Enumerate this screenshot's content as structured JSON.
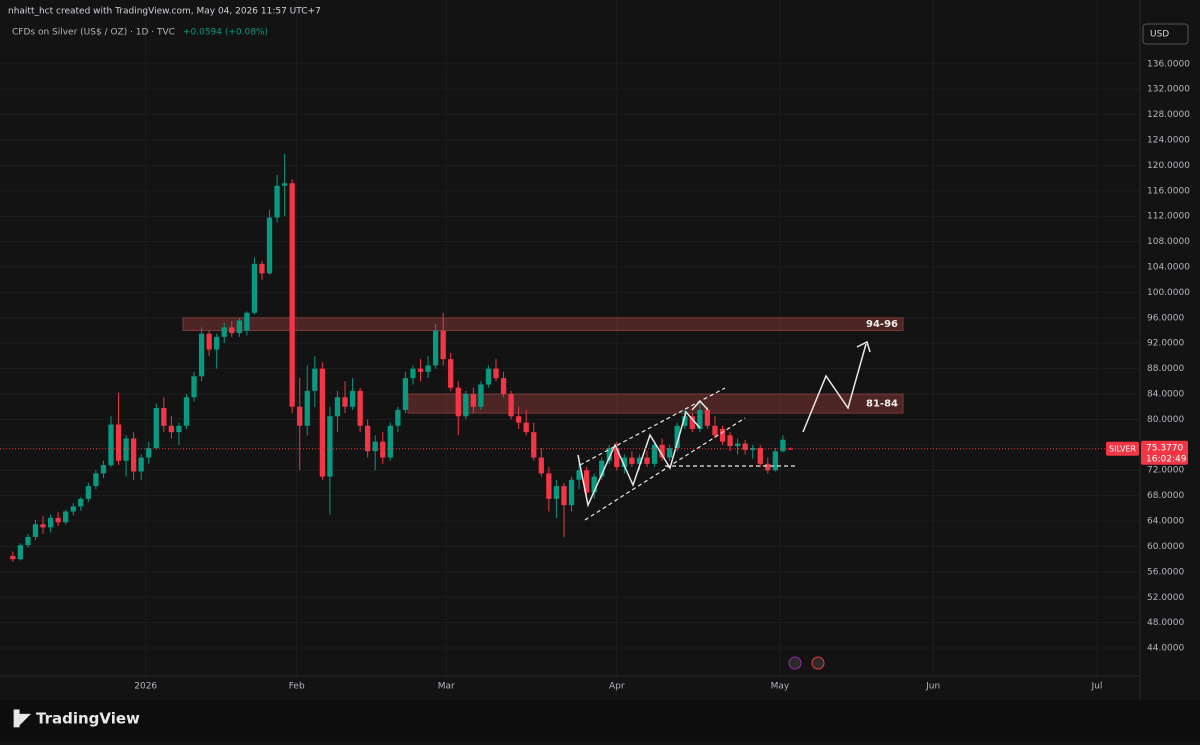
{
  "chart_data": {
    "type": "candlestick",
    "author_line": "nhaitt_hct created with TradingView.com, May 04, 2026 11:57 UTC+7",
    "title": "CFDs on Silver (US$ / OZ) · 1D · TVC",
    "change": "+0.0594 (+0.08%)",
    "currency": "USD",
    "symbol": "SILVER",
    "last_price": {
      "value": 75.377,
      "label": "75.3770"
    },
    "countdown": "16:02:49",
    "brand": "TradingView",
    "up_color": "#089981",
    "down_color": "#f23645",
    "grid": true,
    "xlim": [
      -1.7,
      149.3
    ],
    "xticks": [
      {
        "value": 17.6,
        "label": "2026"
      },
      {
        "value": 37.6,
        "label": "Feb"
      },
      {
        "value": 57.4,
        "label": "Mar"
      },
      {
        "value": 80,
        "label": "Apr"
      },
      {
        "value": 101.6,
        "label": "May"
      },
      {
        "value": 121.9,
        "label": "Jun"
      },
      {
        "value": 143.6,
        "label": "Jul"
      }
    ],
    "ylim": [
      39.6,
      142.9
    ],
    "yticks": [
      {
        "value": 44,
        "label": "44.0000"
      },
      {
        "value": 48,
        "label": "48.0000"
      },
      {
        "value": 52,
        "label": "52.0000"
      },
      {
        "value": 56,
        "label": "56.0000"
      },
      {
        "value": 60,
        "label": "60.0000"
      },
      {
        "value": 64,
        "label": "64.0000"
      },
      {
        "value": 68,
        "label": "68.0000"
      },
      {
        "value": 72,
        "label": "72.0000"
      },
      {
        "value": 76,
        "label": "76.0000"
      },
      {
        "value": 80,
        "label": "80.0000"
      },
      {
        "value": 84,
        "label": "84.0000"
      },
      {
        "value": 88,
        "label": "88.0000"
      },
      {
        "value": 92,
        "label": "92.0000"
      },
      {
        "value": 96,
        "label": "96.0000"
      },
      {
        "value": 100,
        "label": "100.0000"
      },
      {
        "value": 104,
        "label": "104.0000"
      },
      {
        "value": 108,
        "label": "108.0000"
      },
      {
        "value": 112,
        "label": "112.0000"
      },
      {
        "value": 116,
        "label": "116.0000"
      },
      {
        "value": 120,
        "label": "120.0000"
      },
      {
        "value": 124,
        "label": "124.0000"
      },
      {
        "value": 128,
        "label": "128.0000"
      },
      {
        "value": 132,
        "label": "132.0000"
      },
      {
        "value": 136,
        "label": "136.0000"
      }
    ],
    "zones": [
      {
        "label": "94-96",
        "low": 94,
        "high": 96
      },
      {
        "label": "81-84",
        "low": 81,
        "high": 84
      }
    ],
    "ohlc": [
      [
        58.5,
        59.2,
        57.6,
        58.0
      ],
      [
        58.0,
        60.5,
        57.8,
        60.2
      ],
      [
        60.2,
        62.0,
        59.8,
        61.5
      ],
      [
        61.5,
        64.2,
        61.0,
        63.5
      ],
      [
        63.5,
        64.8,
        62.0,
        63.0
      ],
      [
        63.0,
        65.0,
        62.2,
        64.5
      ],
      [
        64.5,
        65.4,
        63.2,
        63.8
      ],
      [
        63.8,
        65.8,
        63.5,
        65.5
      ],
      [
        65.5,
        66.8,
        64.9,
        66.3
      ],
      [
        66.3,
        67.8,
        65.6,
        67.5
      ],
      [
        67.5,
        70.0,
        67.0,
        69.5
      ],
      [
        69.5,
        72.0,
        69.0,
        71.5
      ],
      [
        71.5,
        73.5,
        70.8,
        72.8
      ],
      [
        72.8,
        80.5,
        72.5,
        79.2
      ],
      [
        79.2,
        84.2,
        72.8,
        73.5
      ],
      [
        73.5,
        77.5,
        71.0,
        77.0
      ],
      [
        77.0,
        78.0,
        70.5,
        71.8
      ],
      [
        71.8,
        74.5,
        70.5,
        74.0
      ],
      [
        74.0,
        76.5,
        73.0,
        75.5
      ],
      [
        75.5,
        82.5,
        75.2,
        81.8
      ],
      [
        81.8,
        83.5,
        78.0,
        79.0
      ],
      [
        79.0,
        80.5,
        77.0,
        78.0
      ],
      [
        78.0,
        79.5,
        76.0,
        79.0
      ],
      [
        79.0,
        84.0,
        78.5,
        83.5
      ],
      [
        83.5,
        87.5,
        82.8,
        86.8
      ],
      [
        86.8,
        94.5,
        86.0,
        93.5
      ],
      [
        93.5,
        94.0,
        90.0,
        91.0
      ],
      [
        91.0,
        93.5,
        88.0,
        93.0
      ],
      [
        93.0,
        95.2,
        92.0,
        94.5
      ],
      [
        94.5,
        95.5,
        93.0,
        93.6
      ],
      [
        93.6,
        96.0,
        93.0,
        95.6
      ],
      [
        94.0,
        97.0,
        93.2,
        96.8
      ],
      [
        96.8,
        105.5,
        96.5,
        104.5
      ],
      [
        104.5,
        105.0,
        102.0,
        103.0
      ],
      [
        103.0,
        113.0,
        102.8,
        111.8
      ],
      [
        111.8,
        118.5,
        111.0,
        116.8
      ],
      [
        116.8,
        121.8,
        112.0,
        117.2
      ],
      [
        117.2,
        117.8,
        81.0,
        82.0
      ],
      [
        82.0,
        86.5,
        72.0,
        79.0
      ],
      [
        79.0,
        88.5,
        77.5,
        84.5
      ],
      [
        84.5,
        90.0,
        82.0,
        88.0
      ],
      [
        88.0,
        89.0,
        70.5,
        71.0
      ],
      [
        71.0,
        82.0,
        65.0,
        80.5
      ],
      [
        80.5,
        84.5,
        78.0,
        83.5
      ],
      [
        83.5,
        86.0,
        81.0,
        82.0
      ],
      [
        82.0,
        86.5,
        81.5,
        84.5
      ],
      [
        84.5,
        85.0,
        78.0,
        79.0
      ],
      [
        79.0,
        80.0,
        74.0,
        75.0
      ],
      [
        75.0,
        77.5,
        72.0,
        76.5
      ],
      [
        76.5,
        78.0,
        73.0,
        74.0
      ],
      [
        74.0,
        79.5,
        73.5,
        79.0
      ],
      [
        79.0,
        82.0,
        78.0,
        81.5
      ],
      [
        81.5,
        87.5,
        81.0,
        86.5
      ],
      [
        86.5,
        88.5,
        85.5,
        88.0
      ],
      [
        88.0,
        89.5,
        86.0,
        87.5
      ],
      [
        87.5,
        90.0,
        86.5,
        88.5
      ],
      [
        88.5,
        95.0,
        88.0,
        94.0
      ],
      [
        94.0,
        96.8,
        88.5,
        89.5
      ],
      [
        89.5,
        90.5,
        84.5,
        85.0
      ],
      [
        85.0,
        86.0,
        77.5,
        80.5
      ],
      [
        80.5,
        84.5,
        80.0,
        84.0
      ],
      [
        84.0,
        85.0,
        81.0,
        82.0
      ],
      [
        82.0,
        86.0,
        81.5,
        85.5
      ],
      [
        85.5,
        88.5,
        85.0,
        88.0
      ],
      [
        88.0,
        89.5,
        86.0,
        86.5
      ],
      [
        86.5,
        87.5,
        83.5,
        84.0
      ],
      [
        84.0,
        84.5,
        80.0,
        80.5
      ],
      [
        80.5,
        82.0,
        78.5,
        79.5
      ],
      [
        79.5,
        81.5,
        77.5,
        78.0
      ],
      [
        78.0,
        79.5,
        73.5,
        74.0
      ],
      [
        74.0,
        75.5,
        71.0,
        71.5
      ],
      [
        71.5,
        72.5,
        65.5,
        67.5
      ],
      [
        67.5,
        70.5,
        64.5,
        69.5
      ],
      [
        69.5,
        70.0,
        61.5,
        66.5
      ],
      [
        66.5,
        71.0,
        65.5,
        70.5
      ],
      [
        70.5,
        74.0,
        69.0,
        72.0
      ],
      [
        72.0,
        72.5,
        68.0,
        68.5
      ],
      [
        68.5,
        71.5,
        67.5,
        71.0
      ],
      [
        71.0,
        74.0,
        70.5,
        73.5
      ],
      [
        73.5,
        76.0,
        73.0,
        75.5
      ],
      [
        75.5,
        76.5,
        72.0,
        72.5
      ],
      [
        72.5,
        74.5,
        71.5,
        74.0
      ],
      [
        74.0,
        75.0,
        72.5,
        73.0
      ],
      [
        73.0,
        74.5,
        72.0,
        74.0
      ],
      [
        74.0,
        75.0,
        72.5,
        73.0
      ],
      [
        73.0,
        76.5,
        72.5,
        76.0
      ],
      [
        76.0,
        77.0,
        73.5,
        74.0
      ],
      [
        74.0,
        76.0,
        73.5,
        75.5
      ],
      [
        75.5,
        79.5,
        75.0,
        79.0
      ],
      [
        79.0,
        81.5,
        78.5,
        80.5
      ],
      [
        80.5,
        81.0,
        78.0,
        78.5
      ],
      [
        78.5,
        82.8,
        78.0,
        81.5
      ],
      [
        81.5,
        82.0,
        78.5,
        79.0
      ],
      [
        79.0,
        80.5,
        77.0,
        77.5
      ],
      [
        78.5,
        79.0,
        76.0,
        76.5
      ],
      [
        77.5,
        78.0,
        75.0,
        75.8
      ],
      [
        75.8,
        77.0,
        74.5,
        76.2
      ],
      [
        76.2,
        76.8,
        74.5,
        75.2
      ],
      [
        75.2,
        76.0,
        73.8,
        75.5
      ],
      [
        75.5,
        76.0,
        72.5,
        73.0
      ],
      [
        73.0,
        74.0,
        71.5,
        72.0
      ],
      [
        72.0,
        75.5,
        71.8,
        75.0
      ],
      [
        75.0,
        77.5,
        74.8,
        76.8
      ],
      [
        75.4,
        75.6,
        75.2,
        75.377
      ]
    ]
  }
}
